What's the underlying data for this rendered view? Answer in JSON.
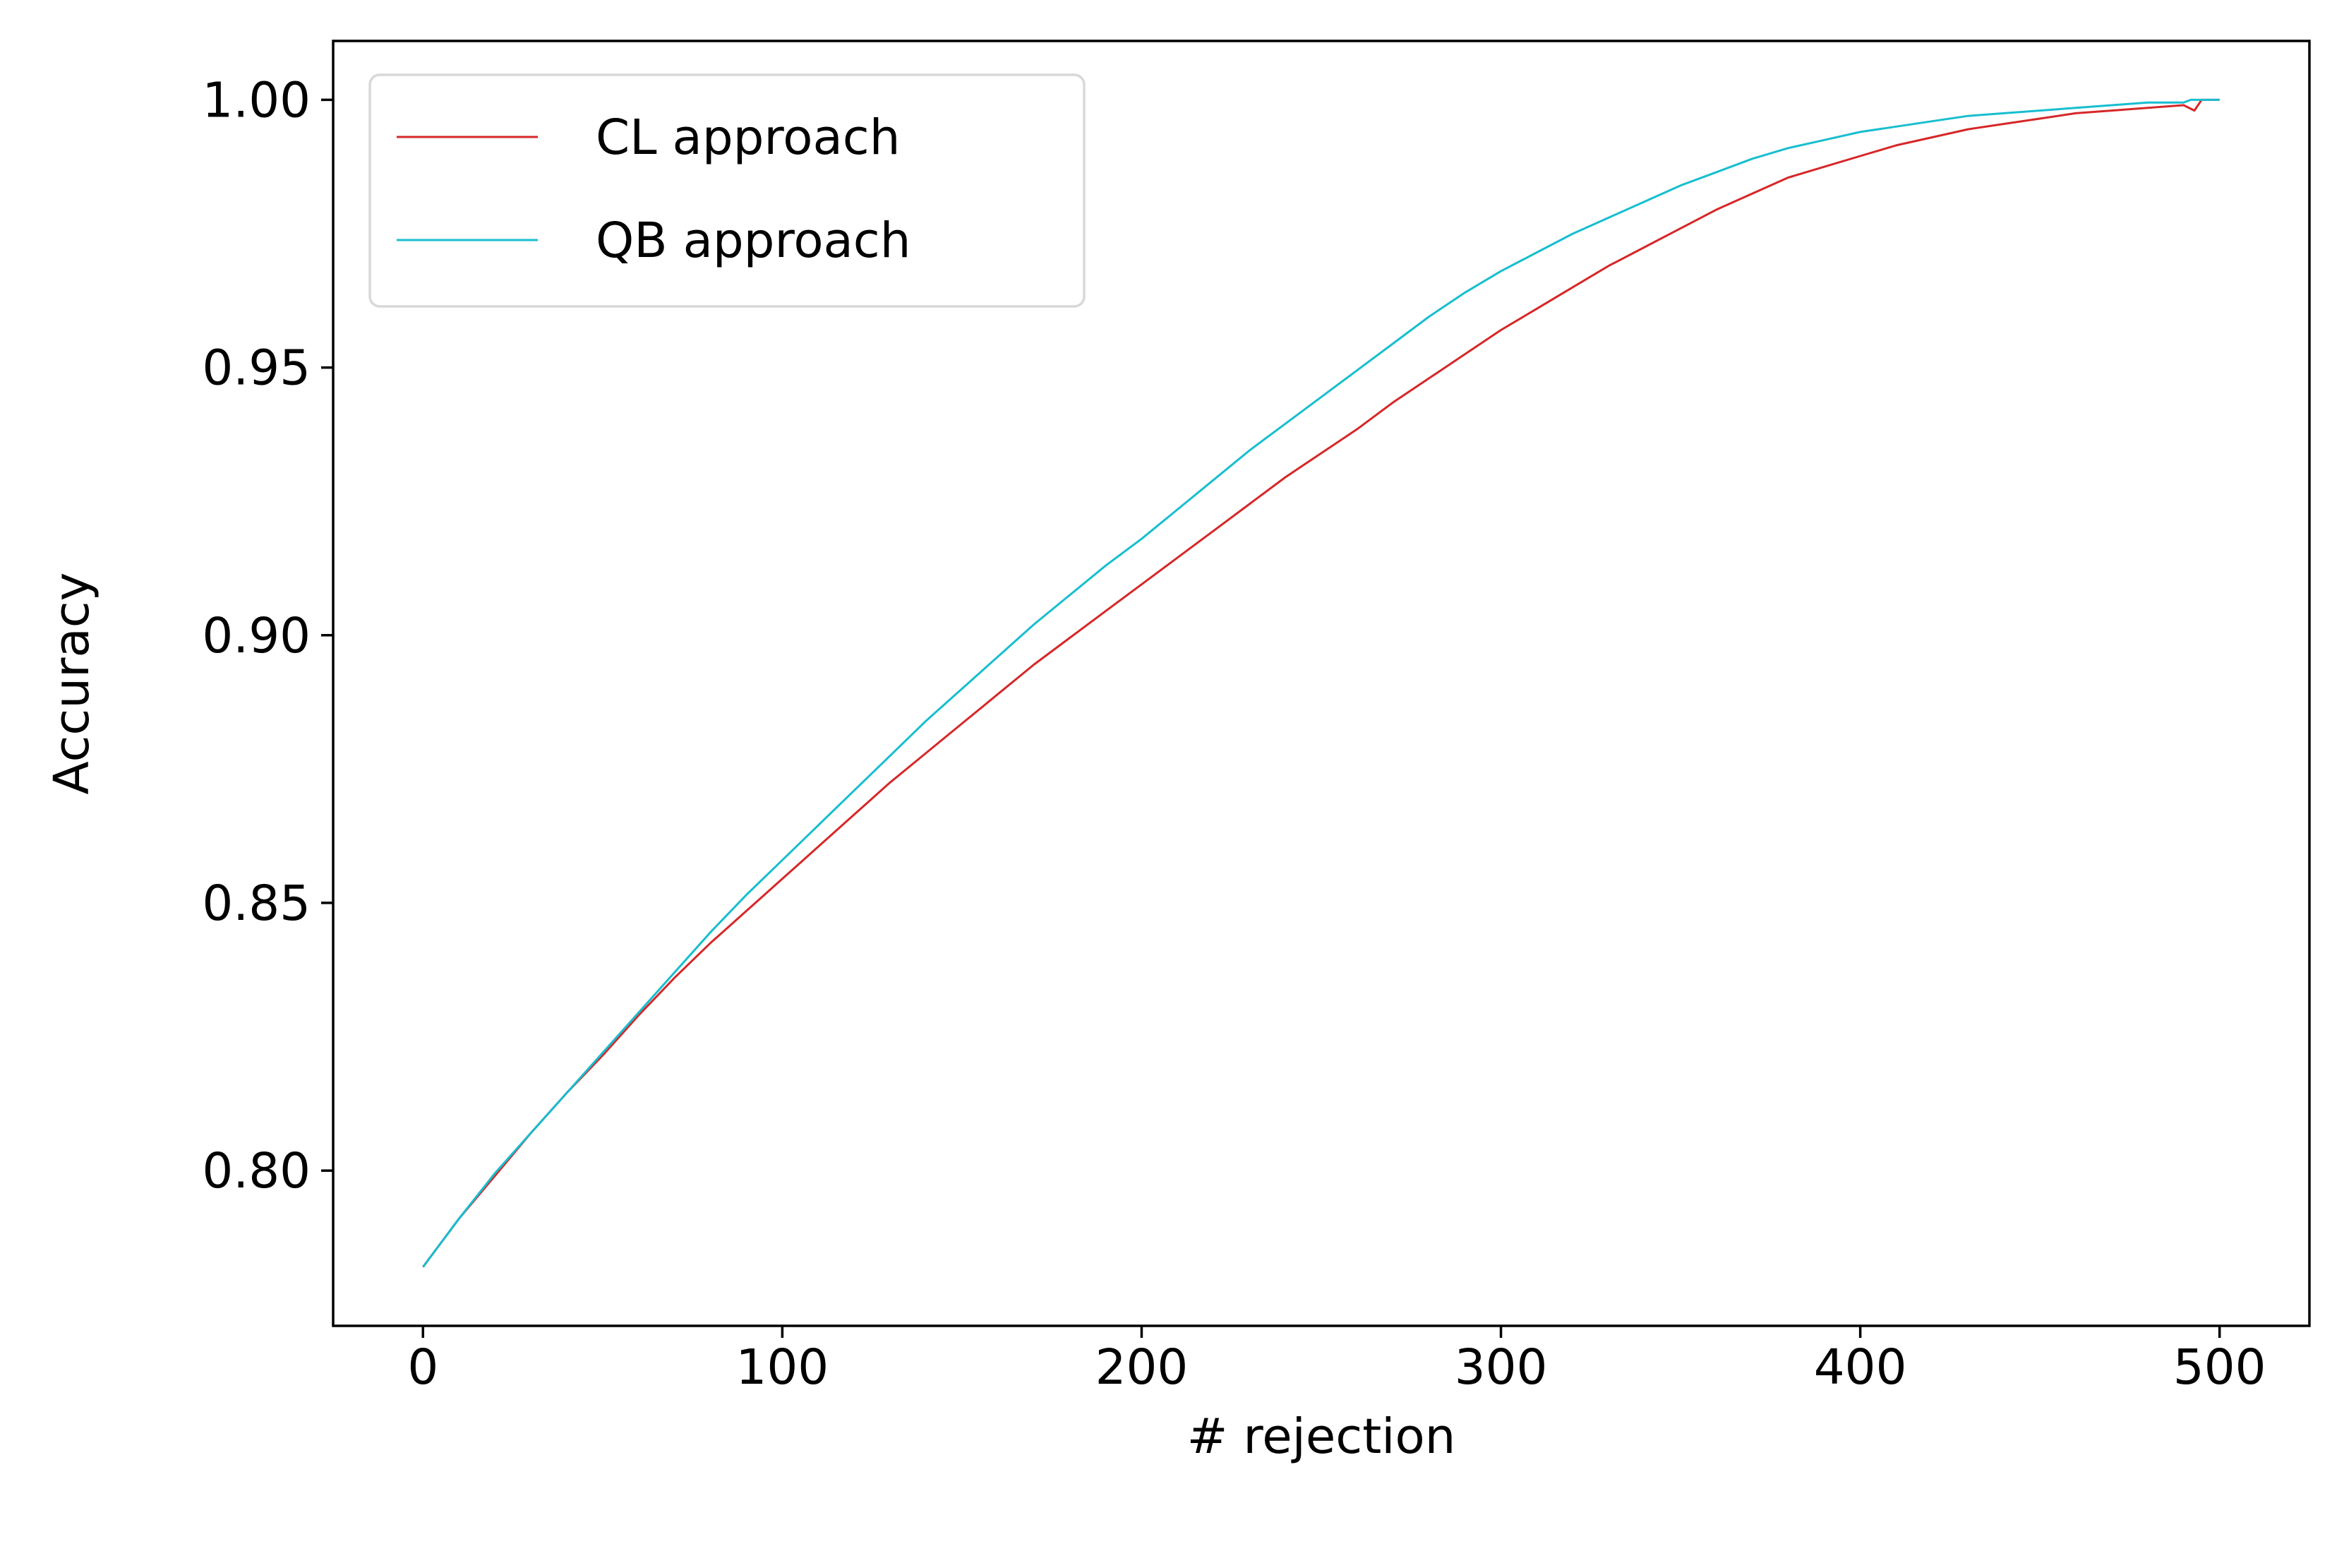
{
  "chart_data": {
    "type": "line",
    "title": "",
    "xlabel": "# rejection",
    "ylabel": "Accuracy",
    "xlim": [
      -25,
      525
    ],
    "ylim": [
      0.771,
      1.011
    ],
    "xticks": [
      0,
      100,
      200,
      300,
      400,
      500
    ],
    "xtick_labels": [
      "0",
      "100",
      "200",
      "300",
      "400",
      "500"
    ],
    "yticks": [
      0.8,
      0.85,
      0.9,
      0.95,
      1.0
    ],
    "ytick_labels": [
      "0.80",
      "0.85",
      "0.90",
      "0.95",
      "1.00"
    ],
    "grid": false,
    "legend_position": "top-left",
    "series": [
      {
        "name": "CL approach",
        "color": "#d62728",
        "x": [
          0,
          10,
          20,
          30,
          40,
          50,
          60,
          70,
          80,
          90,
          100,
          110,
          120,
          130,
          140,
          150,
          160,
          170,
          180,
          190,
          200,
          210,
          220,
          230,
          240,
          250,
          260,
          270,
          280,
          290,
          300,
          310,
          320,
          330,
          340,
          350,
          360,
          370,
          380,
          390,
          400,
          410,
          420,
          430,
          440,
          450,
          460,
          470,
          480,
          490,
          493,
          495,
          500
        ],
        "y": [
          0.782,
          0.791,
          0.799,
          0.807,
          0.8145,
          0.8215,
          0.829,
          0.836,
          0.8425,
          0.8485,
          0.8545,
          0.8605,
          0.8665,
          0.8725,
          0.878,
          0.8835,
          0.889,
          0.8945,
          0.8995,
          0.9045,
          0.9095,
          0.9145,
          0.9195,
          0.9245,
          0.9295,
          0.934,
          0.9385,
          0.9435,
          0.948,
          0.9525,
          0.957,
          0.961,
          0.965,
          0.969,
          0.9725,
          0.976,
          0.9795,
          0.9825,
          0.9855,
          0.9875,
          0.9895,
          0.9915,
          0.993,
          0.9945,
          0.9955,
          0.9965,
          0.9975,
          0.998,
          0.9985,
          0.999,
          0.998,
          1.0,
          1.0
        ]
      },
      {
        "name": "QB approach",
        "color": "#17becf",
        "x": [
          0,
          10,
          20,
          30,
          40,
          50,
          60,
          70,
          80,
          90,
          100,
          110,
          120,
          130,
          140,
          150,
          160,
          170,
          180,
          190,
          200,
          210,
          220,
          230,
          240,
          250,
          260,
          270,
          280,
          290,
          300,
          310,
          320,
          330,
          340,
          350,
          360,
          370,
          380,
          390,
          400,
          410,
          420,
          430,
          440,
          450,
          460,
          470,
          480,
          490,
          492,
          495,
          500
        ],
        "y": [
          0.782,
          0.791,
          0.7995,
          0.807,
          0.8145,
          0.822,
          0.8295,
          0.837,
          0.8445,
          0.8515,
          0.858,
          0.8645,
          0.871,
          0.8775,
          0.884,
          0.89,
          0.896,
          0.902,
          0.9075,
          0.913,
          0.918,
          0.9235,
          0.929,
          0.9345,
          0.9395,
          0.9445,
          0.9495,
          0.9545,
          0.9595,
          0.964,
          0.968,
          0.9715,
          0.975,
          0.978,
          0.981,
          0.984,
          0.9865,
          0.989,
          0.991,
          0.9925,
          0.994,
          0.995,
          0.996,
          0.997,
          0.9975,
          0.998,
          0.9985,
          0.999,
          0.9995,
          0.9995,
          1.0,
          1.0,
          1.0
        ]
      }
    ]
  }
}
